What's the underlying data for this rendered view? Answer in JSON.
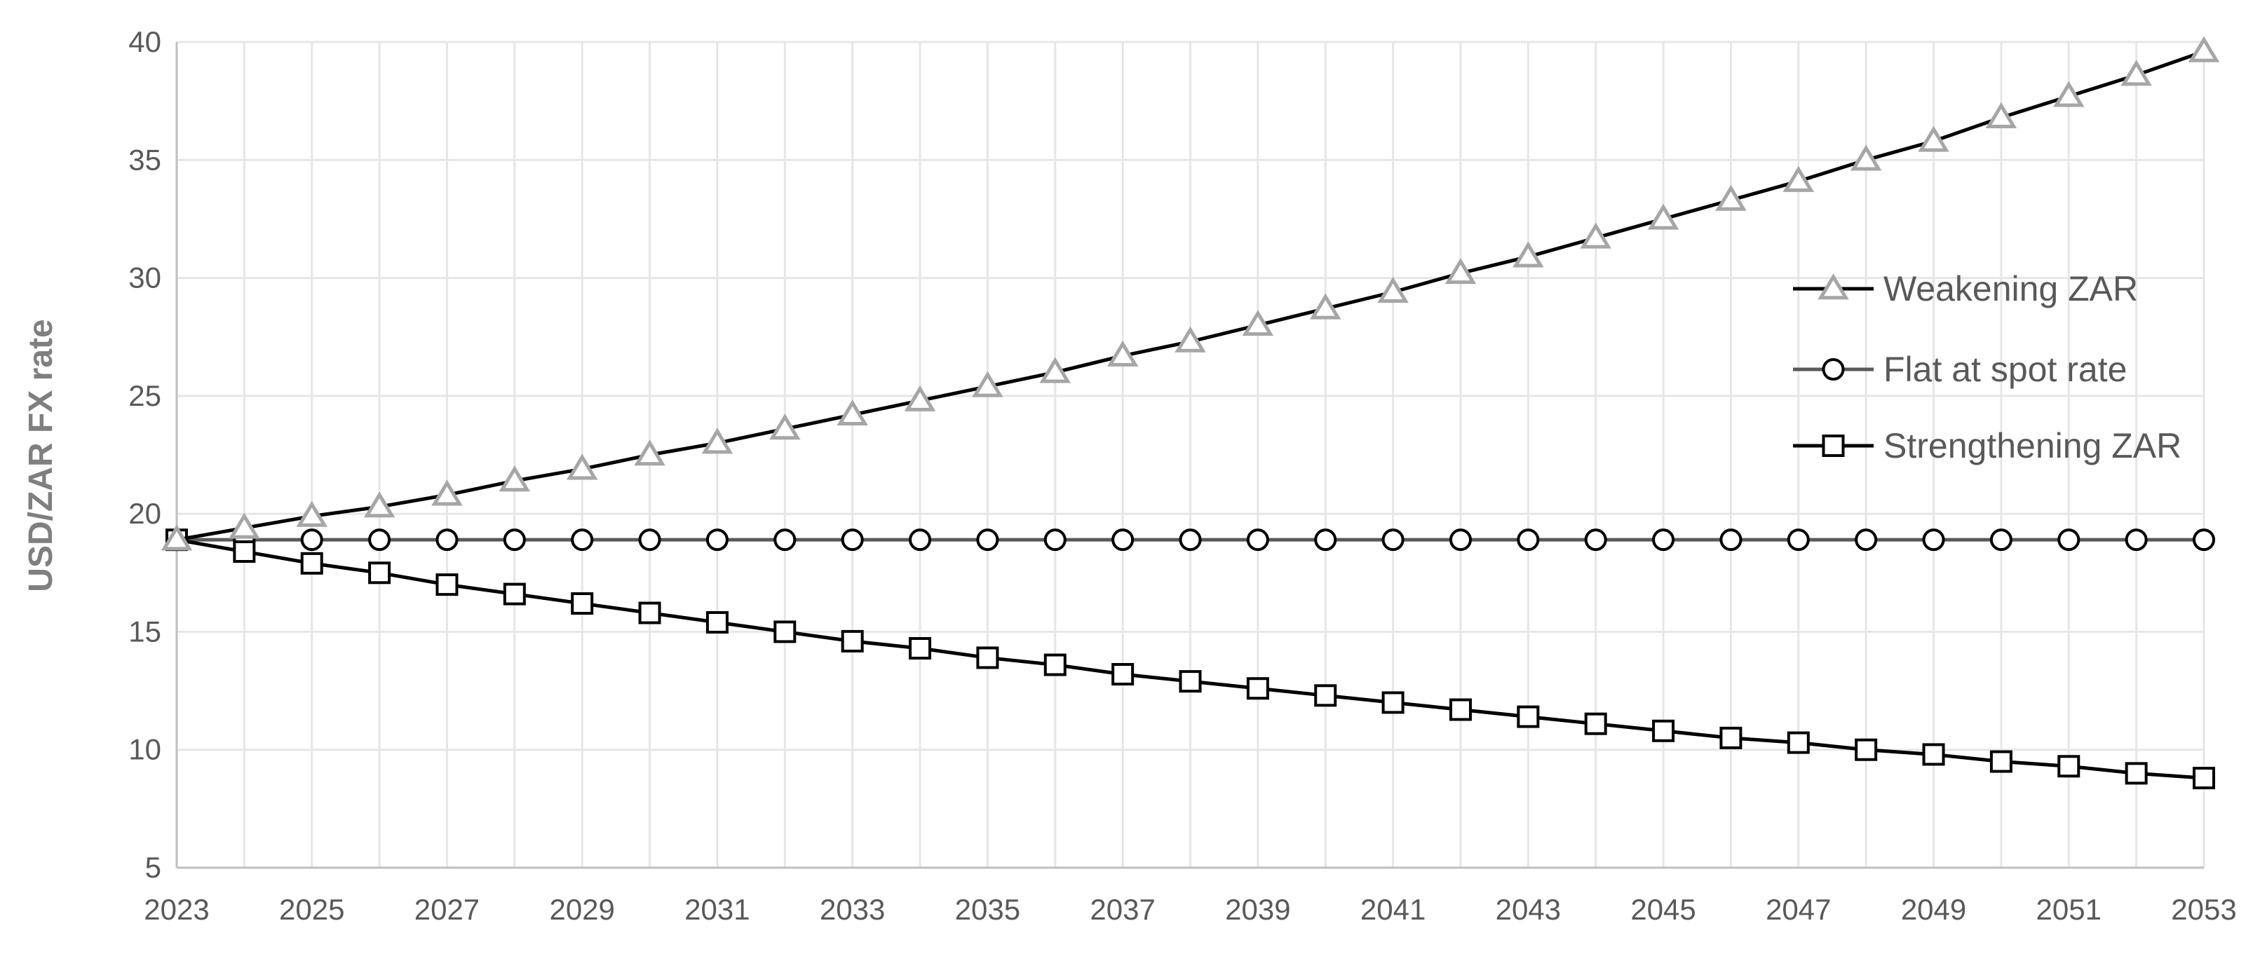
{
  "chart_data": {
    "type": "line",
    "title": "",
    "xlabel": "",
    "ylabel": "USD/ZAR FX rate",
    "xlim": [
      2023,
      2053
    ],
    "ylim": [
      5,
      40
    ],
    "x_ticks": [
      2023,
      2025,
      2027,
      2029,
      2031,
      2033,
      2035,
      2037,
      2039,
      2041,
      2043,
      2045,
      2047,
      2049,
      2051,
      2053
    ],
    "y_ticks": [
      5,
      10,
      15,
      20,
      25,
      30,
      35,
      40
    ],
    "grid": true,
    "legend_position": "right",
    "x": [
      2023,
      2024,
      2025,
      2026,
      2027,
      2028,
      2029,
      2030,
      2031,
      2032,
      2033,
      2034,
      2035,
      2036,
      2037,
      2038,
      2039,
      2040,
      2041,
      2042,
      2043,
      2044,
      2045,
      2046,
      2047,
      2048,
      2049,
      2050,
      2051,
      2052,
      2053
    ],
    "series": [
      {
        "name": "Weakening ZAR",
        "marker": "triangle",
        "line_color": "#000000",
        "marker_color": "#a6a6a6",
        "values": [
          18.9,
          19.4,
          19.9,
          20.3,
          20.8,
          21.4,
          21.9,
          22.5,
          23.0,
          23.6,
          24.2,
          24.8,
          25.4,
          26.0,
          26.7,
          27.3,
          28.0,
          28.7,
          29.4,
          30.2,
          30.9,
          31.7,
          32.5,
          33.3,
          34.1,
          35.0,
          35.8,
          36.8,
          37.7,
          38.6,
          39.6
        ]
      },
      {
        "name": "Flat at spot rate",
        "marker": "circle",
        "line_color": "#595959",
        "marker_color": "#000000",
        "values": [
          18.9,
          18.9,
          18.9,
          18.9,
          18.9,
          18.9,
          18.9,
          18.9,
          18.9,
          18.9,
          18.9,
          18.9,
          18.9,
          18.9,
          18.9,
          18.9,
          18.9,
          18.9,
          18.9,
          18.9,
          18.9,
          18.9,
          18.9,
          18.9,
          18.9,
          18.9,
          18.9,
          18.9,
          18.9,
          18.9,
          18.9
        ]
      },
      {
        "name": "Strengthening ZAR",
        "marker": "square",
        "line_color": "#000000",
        "marker_color": "#000000",
        "values": [
          18.9,
          18.4,
          17.9,
          17.5,
          17.0,
          16.6,
          16.2,
          15.8,
          15.4,
          15.0,
          14.6,
          14.3,
          13.9,
          13.6,
          13.2,
          12.9,
          12.6,
          12.3,
          12.0,
          11.7,
          11.4,
          11.1,
          10.8,
          10.5,
          10.3,
          10.0,
          9.8,
          9.5,
          9.3,
          9.0,
          8.8
        ]
      }
    ]
  }
}
